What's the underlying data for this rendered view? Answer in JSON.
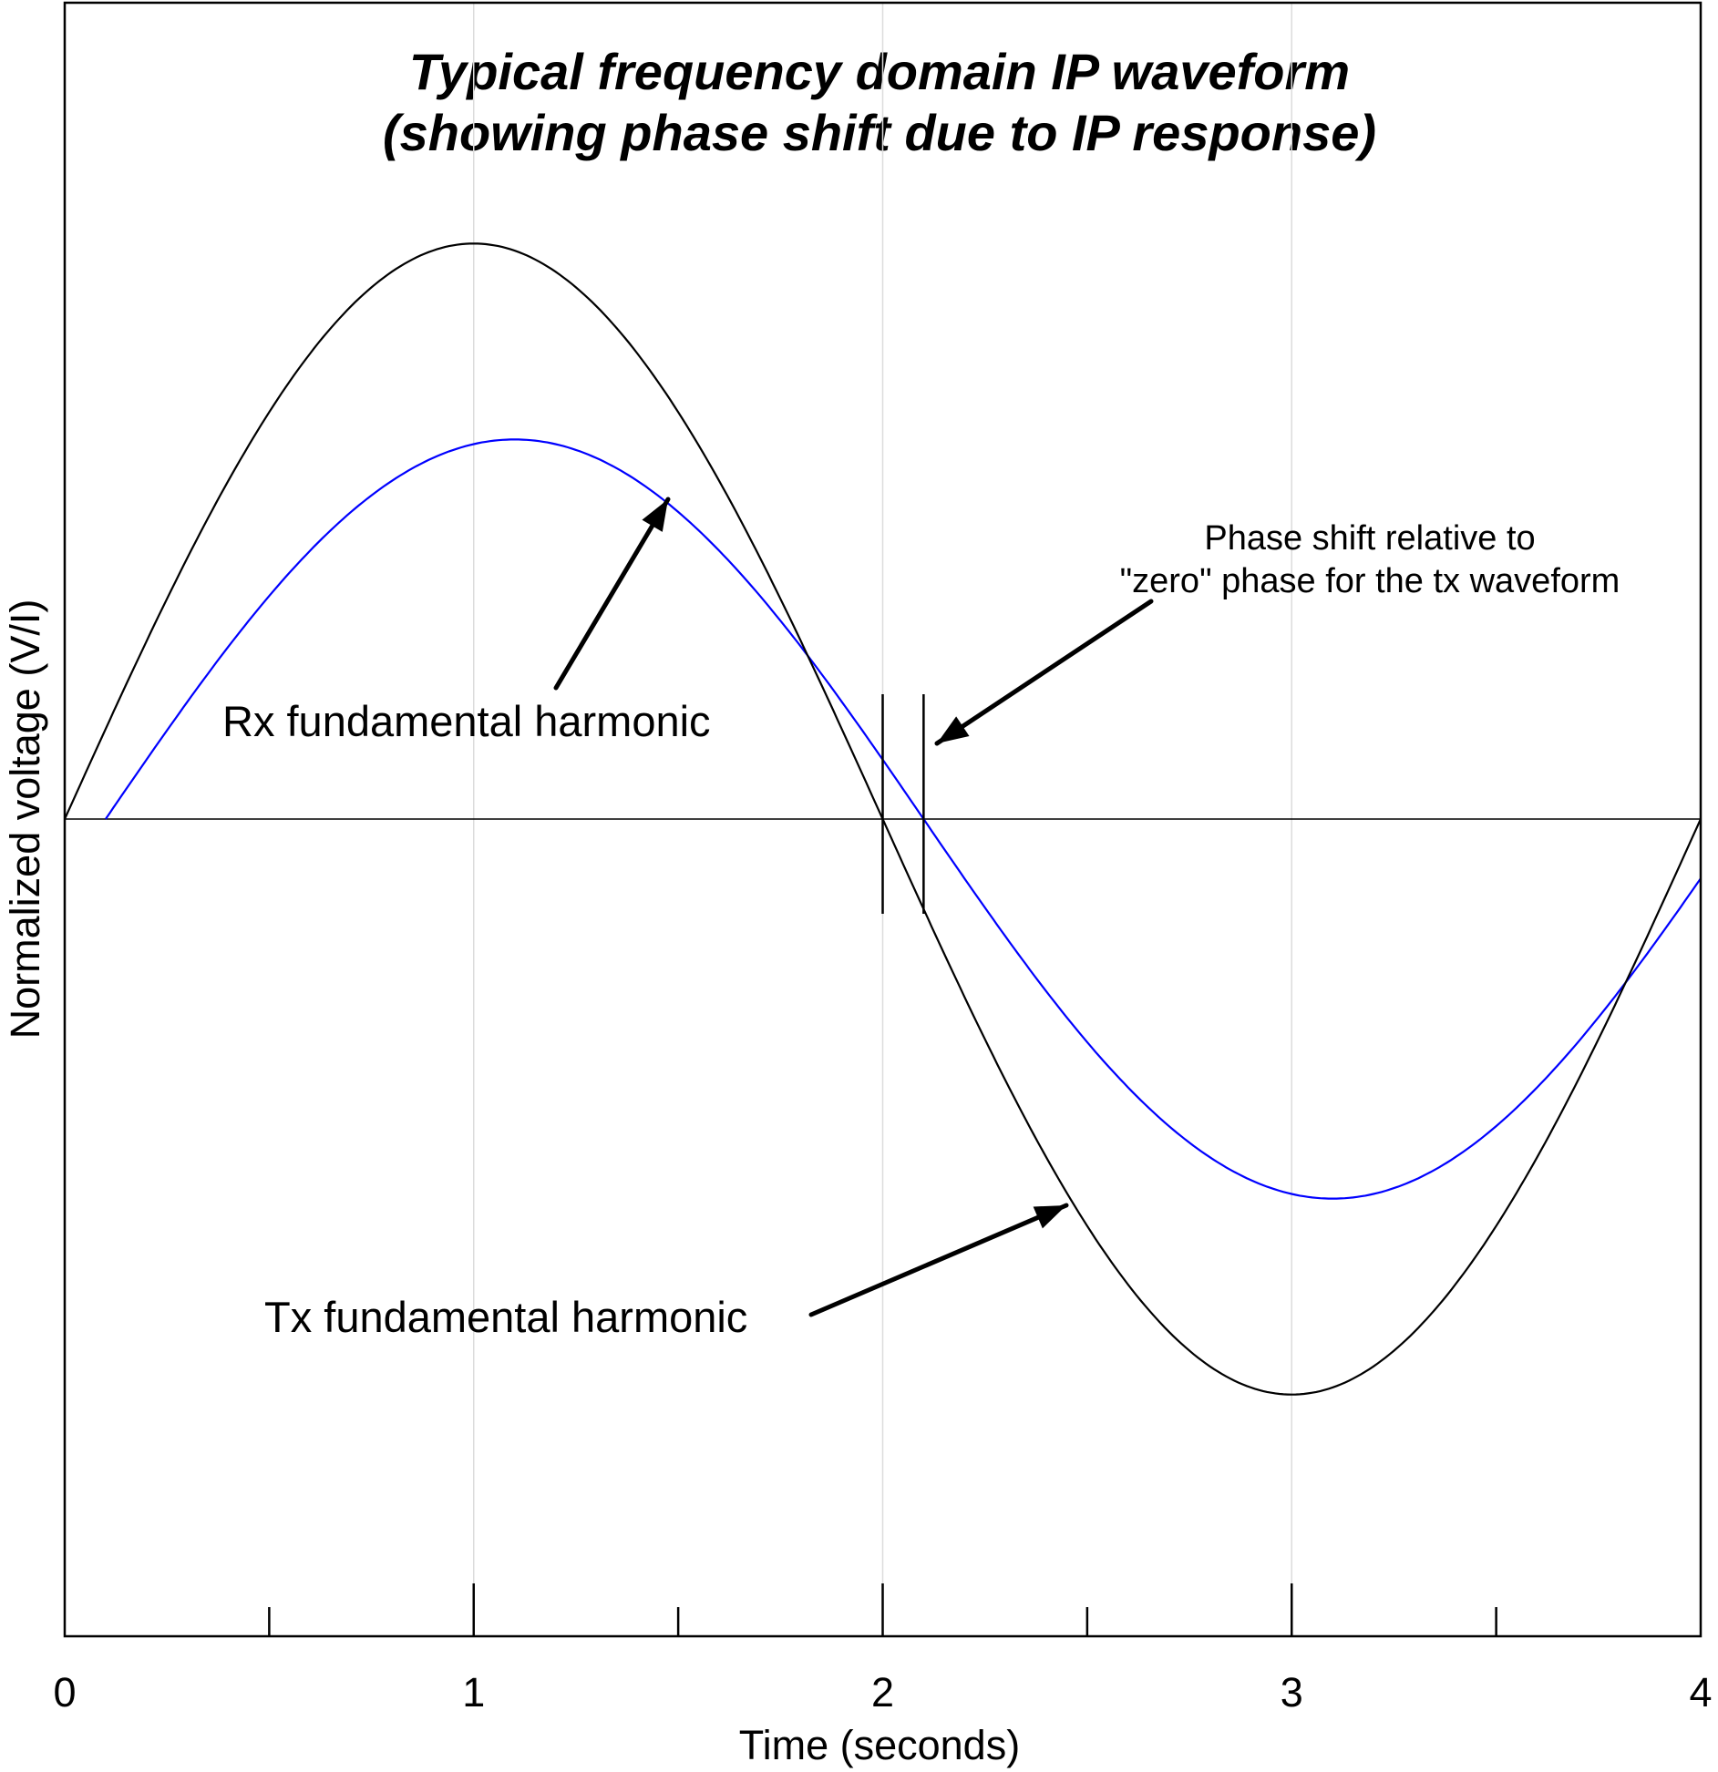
{
  "chart_data": {
    "type": "line",
    "title_lines": [
      "Typical frequency domain IP waveform",
      "(showing phase shift due to IP response)"
    ],
    "xlabel": "Time (seconds)",
    "ylabel": "Normalized voltage (V/I)",
    "xlim": [
      0,
      4
    ],
    "ylim": [
      -2,
      2
    ],
    "x_ticks_major": [
      0,
      1,
      2,
      3,
      4
    ],
    "x_tick_labels": [
      "0",
      "1",
      "2",
      "3",
      "4"
    ],
    "x_ticks_minor": [
      0.5,
      1.5,
      2.5,
      3.5
    ],
    "grid": "vertical lines at major ticks",
    "period_seconds": 4,
    "series": [
      {
        "name": "Tx fundamental harmonic",
        "color": "#000000",
        "amplitude": 1.41,
        "phase_shift_seconds": 0,
        "x_start": 0,
        "x_end": 4
      },
      {
        "name": "Rx fundamental harmonic",
        "color": "#0000ff",
        "amplitude": 0.93,
        "phase_shift_seconds": 0.1,
        "x_start": 0.1,
        "x_end": 4
      }
    ],
    "phase_shift_markers": [
      2,
      2.1
    ],
    "annotations": [
      {
        "id": "rx",
        "text": "Rx fundamental harmonic",
        "target_x": 1.47,
        "target_series": "Rx fundamental harmonic"
      },
      {
        "id": "tx",
        "text": "Tx fundamental harmonic",
        "target_x": 2.45,
        "target_series": "Tx fundamental harmonic"
      },
      {
        "id": "phase",
        "lines": [
          "Phase shift relative to",
          "\"zero\" phase for the tx waveform"
        ],
        "target_x": 2.12
      }
    ]
  }
}
